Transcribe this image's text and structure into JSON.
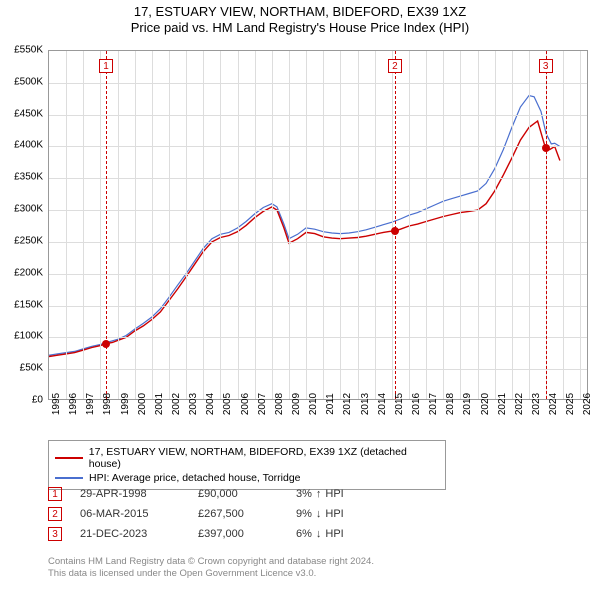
{
  "title": {
    "line1": "17, ESTUARY VIEW, NORTHAM, BIDEFORD, EX39 1XZ",
    "line2": "Price paid vs. HM Land Registry's House Price Index (HPI)"
  },
  "chart": {
    "type": "line",
    "background_color": "#ffffff",
    "grid_color": "#dddddd",
    "border_color": "#999999",
    "xlim": [
      1995,
      2026.5
    ],
    "ylim": [
      0,
      550000
    ],
    "ytick_step": 50000,
    "ytick_labels": [
      "£0",
      "£50K",
      "£100K",
      "£150K",
      "£200K",
      "£250K",
      "£300K",
      "£350K",
      "£400K",
      "£450K",
      "£500K",
      "£550K"
    ],
    "xtick_step": 1,
    "xtick_labels": [
      "1995",
      "1996",
      "1997",
      "1998",
      "1999",
      "2000",
      "2001",
      "2002",
      "2003",
      "2004",
      "2005",
      "2006",
      "2007",
      "2008",
      "2009",
      "2010",
      "2011",
      "2012",
      "2013",
      "2014",
      "2015",
      "2016",
      "2017",
      "2018",
      "2019",
      "2020",
      "2021",
      "2022",
      "2023",
      "2024",
      "2025",
      "2026"
    ],
    "label_fontsize": 10,
    "series": [
      {
        "name": "property",
        "label": "17, ESTUARY VIEW, NORTHAM, BIDEFORD, EX39 1XZ (detached house)",
        "color": "#cc0000",
        "line_width": 1.4,
        "data": [
          [
            1995,
            70000
          ],
          [
            1995.5,
            72000
          ],
          [
            1996,
            74000
          ],
          [
            1996.5,
            76000
          ],
          [
            1997,
            80000
          ],
          [
            1997.5,
            84000
          ],
          [
            1998,
            87000
          ],
          [
            1998.3,
            90000
          ],
          [
            1998.7,
            92000
          ],
          [
            1999,
            95000
          ],
          [
            1999.5,
            100000
          ],
          [
            2000,
            110000
          ],
          [
            2000.5,
            118000
          ],
          [
            2001,
            128000
          ],
          [
            2001.5,
            140000
          ],
          [
            2002,
            158000
          ],
          [
            2002.5,
            176000
          ],
          [
            2003,
            195000
          ],
          [
            2003.5,
            215000
          ],
          [
            2004,
            235000
          ],
          [
            2004.5,
            250000
          ],
          [
            2005,
            257000
          ],
          [
            2005.5,
            260000
          ],
          [
            2006,
            266000
          ],
          [
            2006.5,
            276000
          ],
          [
            2007,
            288000
          ],
          [
            2007.5,
            298000
          ],
          [
            2008,
            305000
          ],
          [
            2008.3,
            300000
          ],
          [
            2008.7,
            272000
          ],
          [
            2009,
            248000
          ],
          [
            2009.5,
            255000
          ],
          [
            2010,
            265000
          ],
          [
            2010.5,
            263000
          ],
          [
            2011,
            258000
          ],
          [
            2011.5,
            256000
          ],
          [
            2012,
            255000
          ],
          [
            2012.5,
            256000
          ],
          [
            2013,
            257000
          ],
          [
            2013.5,
            259000
          ],
          [
            2014,
            262000
          ],
          [
            2014.5,
            265000
          ],
          [
            2015,
            267000
          ],
          [
            2015.2,
            267500
          ],
          [
            2015.5,
            270000
          ],
          [
            2016,
            275000
          ],
          [
            2016.5,
            278000
          ],
          [
            2017,
            282000
          ],
          [
            2017.5,
            286000
          ],
          [
            2018,
            290000
          ],
          [
            2018.5,
            293000
          ],
          [
            2019,
            296000
          ],
          [
            2019.5,
            298000
          ],
          [
            2020,
            300000
          ],
          [
            2020.5,
            310000
          ],
          [
            2021,
            330000
          ],
          [
            2021.5,
            355000
          ],
          [
            2022,
            382000
          ],
          [
            2022.5,
            410000
          ],
          [
            2023,
            430000
          ],
          [
            2023.5,
            440000
          ],
          [
            2023.97,
            397000
          ],
          [
            2024.2,
            395000
          ],
          [
            2024.5,
            400000
          ],
          [
            2024.8,
            378000
          ]
        ]
      },
      {
        "name": "hpi",
        "label": "HPI: Average price, detached house, Torridge",
        "color": "#4a6fcf",
        "line_width": 1.2,
        "data": [
          [
            1995,
            72000
          ],
          [
            1995.5,
            74000
          ],
          [
            1996,
            76000
          ],
          [
            1996.5,
            78000
          ],
          [
            1997,
            82000
          ],
          [
            1997.5,
            86000
          ],
          [
            1998,
            89000
          ],
          [
            1998.5,
            93000
          ],
          [
            1999,
            97000
          ],
          [
            1999.5,
            103000
          ],
          [
            2000,
            113000
          ],
          [
            2000.5,
            122000
          ],
          [
            2001,
            132000
          ],
          [
            2001.5,
            145000
          ],
          [
            2002,
            163000
          ],
          [
            2002.5,
            182000
          ],
          [
            2003,
            200000
          ],
          [
            2003.5,
            220000
          ],
          [
            2004,
            240000
          ],
          [
            2004.5,
            255000
          ],
          [
            2005,
            262000
          ],
          [
            2005.5,
            265000
          ],
          [
            2006,
            272000
          ],
          [
            2006.5,
            282000
          ],
          [
            2007,
            294000
          ],
          [
            2007.5,
            304000
          ],
          [
            2008,
            310000
          ],
          [
            2008.3,
            305000
          ],
          [
            2008.7,
            278000
          ],
          [
            2009,
            255000
          ],
          [
            2009.5,
            262000
          ],
          [
            2010,
            272000
          ],
          [
            2010.5,
            270000
          ],
          [
            2011,
            266000
          ],
          [
            2011.5,
            264000
          ],
          [
            2012,
            263000
          ],
          [
            2012.5,
            264000
          ],
          [
            2013,
            266000
          ],
          [
            2013.5,
            269000
          ],
          [
            2014,
            273000
          ],
          [
            2014.5,
            277000
          ],
          [
            2015,
            281000
          ],
          [
            2015.5,
            286000
          ],
          [
            2016,
            292000
          ],
          [
            2016.5,
            296000
          ],
          [
            2017,
            302000
          ],
          [
            2017.5,
            308000
          ],
          [
            2018,
            314000
          ],
          [
            2018.5,
            318000
          ],
          [
            2019,
            322000
          ],
          [
            2019.5,
            326000
          ],
          [
            2020,
            330000
          ],
          [
            2020.5,
            342000
          ],
          [
            2021,
            365000
          ],
          [
            2021.5,
            395000
          ],
          [
            2022,
            430000
          ],
          [
            2022.5,
            462000
          ],
          [
            2023,
            480000
          ],
          [
            2023.3,
            478000
          ],
          [
            2023.7,
            455000
          ],
          [
            2024,
            420000
          ],
          [
            2024.3,
            404000
          ],
          [
            2024.5,
            405000
          ],
          [
            2024.8,
            400000
          ]
        ]
      }
    ],
    "marker_lines": [
      {
        "id": "1",
        "x": 1998.33,
        "dot_y": 90000,
        "dot_color": "#cc0000"
      },
      {
        "id": "2",
        "x": 2015.18,
        "dot_y": 267500,
        "dot_color": "#cc0000"
      },
      {
        "id": "3",
        "x": 2023.97,
        "dot_y": 397000,
        "dot_color": "#cc0000"
      }
    ],
    "marker_line_color": "#cc0000"
  },
  "legend": {
    "border_color": "#999999",
    "items": [
      {
        "color": "#cc0000",
        "label": "17, ESTUARY VIEW, NORTHAM, BIDEFORD, EX39 1XZ (detached house)"
      },
      {
        "color": "#4a6fcf",
        "label": "HPI: Average price, detached house, Torridge"
      }
    ]
  },
  "markers_table": [
    {
      "id": "1",
      "date": "29-APR-1998",
      "price": "£90,000",
      "delta": "3%",
      "arrow": "↑",
      "suffix": "HPI"
    },
    {
      "id": "2",
      "date": "06-MAR-2015",
      "price": "£267,500",
      "delta": "9%",
      "arrow": "↓",
      "suffix": "HPI"
    },
    {
      "id": "3",
      "date": "21-DEC-2023",
      "price": "£397,000",
      "delta": "6%",
      "arrow": "↓",
      "suffix": "HPI"
    }
  ],
  "footer": {
    "line1": "Contains HM Land Registry data © Crown copyright and database right 2024.",
    "line2": "This data is licensed under the Open Government Licence v3.0."
  }
}
